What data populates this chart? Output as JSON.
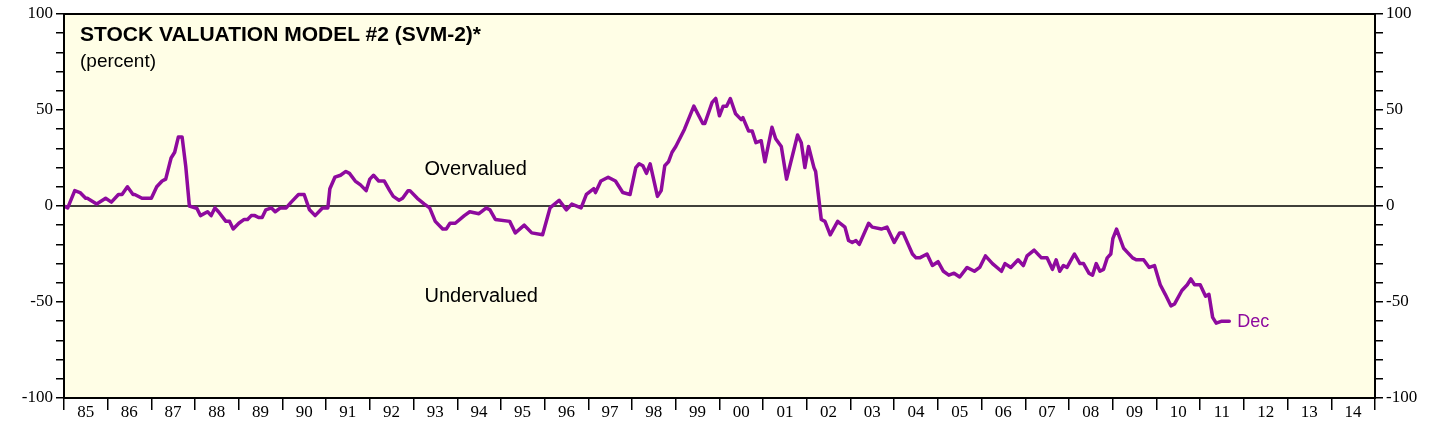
{
  "chart_data": {
    "type": "line",
    "title": "STOCK VALUATION MODEL #2 (SVM-2)*",
    "subtitle": "(percent)",
    "annotations": [
      "Overvalued",
      "Undervalued",
      {
        "text": "Dec",
        "x": "2011-09-01",
        "y": -60
      }
    ],
    "xlim": [
      "1985-01-01",
      "2015-01-01"
    ],
    "xticks": [
      {
        "value": "1985-01-01",
        "label": null
      },
      {
        "value": "1985-07-01",
        "label": "85"
      },
      {
        "value": "1986-01-01",
        "label": null
      },
      {
        "value": "1986-07-01",
        "label": "86"
      },
      {
        "value": "1987-01-01",
        "label": null
      },
      {
        "value": "1987-07-01",
        "label": "87"
      },
      {
        "value": "1988-01-01",
        "label": null
      },
      {
        "value": "1988-07-01",
        "label": "88"
      },
      {
        "value": "1989-01-01",
        "label": null
      },
      {
        "value": "1989-07-01",
        "label": "89"
      },
      {
        "value": "1990-01-01",
        "label": null
      },
      {
        "value": "1990-07-01",
        "label": "90"
      },
      {
        "value": "1991-01-01",
        "label": null
      },
      {
        "value": "1991-07-01",
        "label": "91"
      },
      {
        "value": "1992-01-01",
        "label": null
      },
      {
        "value": "1992-07-01",
        "label": "92"
      },
      {
        "value": "1993-01-01",
        "label": null
      },
      {
        "value": "1993-07-01",
        "label": "93"
      },
      {
        "value": "1994-01-01",
        "label": null
      },
      {
        "value": "1994-07-01",
        "label": "94"
      },
      {
        "value": "1995-01-01",
        "label": null
      },
      {
        "value": "1995-07-01",
        "label": "95"
      },
      {
        "value": "1996-01-01",
        "label": null
      },
      {
        "value": "1996-07-01",
        "label": "96"
      },
      {
        "value": "1997-01-01",
        "label": null
      },
      {
        "value": "1997-07-01",
        "label": "97"
      },
      {
        "value": "1998-01-01",
        "label": null
      },
      {
        "value": "1998-07-01",
        "label": "98"
      },
      {
        "value": "1999-01-01",
        "label": null
      },
      {
        "value": "1999-07-01",
        "label": "99"
      },
      {
        "value": "2000-01-01",
        "label": null
      },
      {
        "value": "2000-07-01",
        "label": "00"
      },
      {
        "value": "2001-01-01",
        "label": null
      },
      {
        "value": "2001-07-01",
        "label": "01"
      },
      {
        "value": "2002-01-01",
        "label": null
      },
      {
        "value": "2002-07-01",
        "label": "02"
      },
      {
        "value": "2003-01-01",
        "label": null
      },
      {
        "value": "2003-07-01",
        "label": "03"
      },
      {
        "value": "2004-01-01",
        "label": null
      },
      {
        "value": "2004-07-01",
        "label": "04"
      },
      {
        "value": "2005-01-01",
        "label": null
      },
      {
        "value": "2005-07-01",
        "label": "05"
      },
      {
        "value": "2006-01-01",
        "label": null
      },
      {
        "value": "2006-07-01",
        "label": "06"
      },
      {
        "value": "2007-01-01",
        "label": null
      },
      {
        "value": "2007-07-01",
        "label": "07"
      },
      {
        "value": "2008-01-01",
        "label": null
      },
      {
        "value": "2008-07-01",
        "label": "08"
      },
      {
        "value": "2009-01-01",
        "label": null
      },
      {
        "value": "2009-07-01",
        "label": "09"
      },
      {
        "value": "2010-01-01",
        "label": null
      },
      {
        "value": "2010-07-01",
        "label": "10"
      },
      {
        "value": "2011-01-01",
        "label": null
      },
      {
        "value": "2011-07-01",
        "label": "11"
      },
      {
        "value": "2012-01-01",
        "label": null
      },
      {
        "value": "2012-07-01",
        "label": "12"
      },
      {
        "value": "2013-01-01",
        "label": null
      },
      {
        "value": "2013-07-01",
        "label": "13"
      },
      {
        "value": "2014-01-01",
        "label": null
      },
      {
        "value": "2014-07-01",
        "label": "14"
      },
      {
        "value": "2015-01-01",
        "label": null
      }
    ],
    "ylim": [
      -100,
      100
    ],
    "yticks": [
      -100,
      {
        "value": -90,
        "label": null
      },
      {
        "value": -80,
        "label": null
      },
      {
        "value": -70,
        "label": null
      },
      {
        "value": -60,
        "label": null
      },
      -50,
      {
        "value": -40,
        "label": null
      },
      {
        "value": -30,
        "label": null
      },
      {
        "value": -20,
        "label": null
      },
      {
        "value": -10,
        "label": null
      },
      0,
      {
        "value": 10,
        "label": null
      },
      {
        "value": 20,
        "label": null
      },
      {
        "value": 30,
        "label": null
      },
      {
        "value": 40,
        "label": null
      },
      50,
      {
        "value": 60,
        "label": null
      },
      {
        "value": 70,
        "label": null
      },
      {
        "value": 80,
        "label": null
      },
      {
        "value": 90,
        "label": null
      },
      100
    ],
    "y2lim": [
      -100,
      100
    ],
    "y2ticks": [
      -100,
      {
        "value": -90,
        "label": null
      },
      {
        "value": -80,
        "label": null
      },
      {
        "value": -70,
        "label": null
      },
      {
        "value": -60,
        "label": null
      },
      -50,
      {
        "value": -40,
        "label": null
      },
      {
        "value": -30,
        "label": null
      },
      {
        "value": -20,
        "label": null
      },
      {
        "value": -10,
        "label": null
      },
      0,
      {
        "value": 10,
        "label": null
      },
      {
        "value": 20,
        "label": null
      },
      {
        "value": 30,
        "label": null
      },
      {
        "value": 40,
        "label": null
      },
      50,
      {
        "value": 60,
        "label": null
      },
      {
        "value": 70,
        "label": null
      },
      {
        "value": 80,
        "label": null
      },
      {
        "value": 90,
        "label": null
      },
      100
    ],
    "ref_lines": [
      {
        "axis": "y",
        "value": 0,
        "color": "#000000"
      }
    ],
    "grid": false,
    "legend": false,
    "marker": "none",
    "line_style": "solid",
    "series": [
      {
        "color": "#8e0a9e",
        "x": [
          "1985-01-01",
          "1985-02-01",
          "1985-04-01",
          "1985-05-15",
          "1985-07-01",
          "1985-07-15",
          "1985-10-01",
          "1985-12-15",
          "1986-02-01",
          "1986-04-01",
          "1986-05-01",
          "1986-06-15",
          "1986-08-01",
          "1986-08-15",
          "1986-10-15",
          "1987-01-01",
          "1987-02-15",
          "1987-04-01",
          "1987-05-01",
          "1987-06-15",
          "1987-07-15",
          "1987-08-15",
          "1987-09-15",
          "1987-10-15",
          "1987-11-15",
          "1988-01-01",
          "1988-01-15",
          "1988-02-15",
          "1988-04-15",
          "1988-05-15",
          "1988-06-15",
          "1988-07-15",
          "1988-09-15",
          "1988-10-15",
          "1988-11-15",
          "1989-01-01",
          "1989-02-15",
          "1989-03-15",
          "1989-04-15",
          "1989-05-15",
          "1989-06-15",
          "1989-07-15",
          "1989-08-15",
          "1989-10-01",
          "1989-11-01",
          "1989-12-15",
          "1990-02-01",
          "1990-03-15",
          "1990-05-15",
          "1990-07-01",
          "1990-08-15",
          "1990-10-01",
          "1990-12-01",
          "1991-01-15",
          "1991-02-01",
          "1991-03-15",
          "1991-05-01",
          "1991-06-15",
          "1991-07-15",
          "1991-09-01",
          "1991-10-15",
          "1991-12-01",
          "1992-01-01",
          "1992-02-01",
          "1992-03-15",
          "1992-05-01",
          "1992-06-15",
          "1992-07-15",
          "1992-09-01",
          "1992-10-01",
          "1992-11-15",
          "1992-12-01",
          "1993-02-01",
          "1993-04-01",
          "1993-05-15",
          "1993-07-01",
          "1993-09-01",
          "1993-10-01",
          "1993-11-01",
          "1993-12-15",
          "1994-03-01",
          "1994-04-15",
          "1994-07-01",
          "1994-09-01",
          "1994-10-01",
          "1994-11-15",
          "1995-03-15",
          "1995-05-01",
          "1995-07-15",
          "1995-09-15",
          "1995-12-15",
          "1996-02-15",
          "1996-05-01",
          "1996-07-01",
          "1996-08-15",
          "1996-11-01",
          "1996-12-15",
          "1997-02-15",
          "1997-03-01",
          "1997-04-15",
          "1997-06-15",
          "1997-08-15",
          "1997-10-15",
          "1997-12-15",
          "1998-02-01",
          "1998-03-01",
          "1998-04-01",
          "1998-05-01",
          "1998-06-01",
          "1998-08-01",
          "1998-09-01",
          "1998-10-01",
          "1998-11-01",
          "1998-12-01",
          "1999-01-01",
          "1999-03-15",
          "1999-06-01",
          "1999-08-15",
          "1999-09-01",
          "1999-11-01",
          "1999-12-01",
          "2000-01-01",
          "2000-02-01",
          "2000-03-01",
          "2000-04-01",
          "2000-05-15",
          "2000-07-01",
          "2000-07-15",
          "2000-09-01",
          "2000-10-01",
          "2000-11-01",
          "2000-12-15",
          "2001-01-15",
          "2001-03-15",
          "2001-04-15",
          "2001-06-01",
          "2001-07-15",
          "2001-10-15",
          "2001-11-15",
          "2001-12-15",
          "2002-01-15",
          "2002-03-01",
          "2002-03-15",
          "2002-05-01",
          "2002-06-01",
          "2002-07-15",
          "2002-09-15",
          "2002-11-15",
          "2002-12-15",
          "2003-01-15",
          "2003-02-15",
          "2003-03-15",
          "2003-06-01",
          "2003-07-01",
          "2003-09-15",
          "2003-11-01",
          "2004-01-01",
          "2004-02-15",
          "2004-03-15",
          "2004-06-01",
          "2004-07-01",
          "2004-08-01",
          "2004-10-01",
          "2004-11-15",
          "2005-01-01",
          "2005-02-15",
          "2005-04-01",
          "2005-05-15",
          "2005-07-01",
          "2005-09-01",
          "2005-11-01",
          "2005-12-15",
          "2006-02-01",
          "2006-04-01",
          "2006-06-15",
          "2006-07-15",
          "2006-09-01",
          "2006-11-01",
          "2006-12-15",
          "2007-01-15",
          "2007-03-15",
          "2007-05-15",
          "2007-07-01",
          "2007-08-15",
          "2007-09-15",
          "2007-10-15",
          "2007-11-15",
          "2007-12-15",
          "2008-02-15",
          "2008-04-01",
          "2008-05-01",
          "2008-06-15",
          "2008-07-15",
          "2008-08-15",
          "2008-09-15",
          "2008-10-15",
          "2008-11-15",
          "2008-12-15",
          "2009-01-01",
          "2009-02-01",
          "2009-04-01",
          "2009-05-01",
          "2009-06-15",
          "2009-07-15",
          "2009-09-15",
          "2009-11-01",
          "2009-12-15",
          "2010-02-01",
          "2010-03-15",
          "2010-05-01",
          "2010-06-01",
          "2010-08-01",
          "2010-09-15",
          "2010-10-15",
          "2010-11-15",
          "2011-01-01",
          "2011-02-15",
          "2011-03-15",
          "2011-04-15",
          "2011-05-15",
          "2011-07-01",
          "2011-09-01"
        ],
        "values": [
          0,
          -1,
          8,
          7,
          4,
          4,
          1,
          4,
          2,
          6,
          6,
          10,
          6,
          6,
          4,
          4,
          10,
          13,
          14,
          25,
          28,
          36,
          36,
          21,
          0,
          -1,
          -1,
          -5,
          -3,
          -5,
          -1,
          -3,
          -8,
          -8,
          -12,
          -9,
          -7,
          -7,
          -5,
          -5,
          -6,
          -6,
          -2,
          -1,
          -3,
          -1,
          -1,
          2,
          6,
          6,
          -2,
          -5,
          -1,
          -1,
          9,
          15,
          16,
          18,
          17,
          13,
          11,
          8,
          14,
          16,
          13,
          13,
          8,
          5,
          3,
          4,
          8,
          8,
          4,
          1,
          -1,
          -8,
          -12,
          -12,
          -9,
          -9,
          -5,
          -3,
          -4,
          -1,
          -2,
          -7,
          -8,
          -14,
          -10,
          -14,
          -15,
          -1,
          3,
          -2,
          1,
          -1,
          6,
          9,
          7,
          13,
          15,
          13,
          7,
          6,
          20,
          22,
          21,
          17,
          22,
          5,
          8,
          21,
          23,
          28,
          31,
          40,
          52,
          43,
          43,
          54,
          56,
          47,
          52,
          52,
          56,
          48,
          45,
          46,
          39,
          39,
          33,
          34,
          23,
          41,
          35,
          31,
          14,
          37,
          33,
          20,
          31,
          20,
          18,
          -7,
          -8,
          -15,
          -8,
          -11,
          -18,
          -19,
          -18,
          -20,
          -9,
          -11,
          -12,
          -11,
          -19,
          -14,
          -14,
          -25,
          -27,
          -27,
          -25,
          -31,
          -29,
          -34,
          -36,
          -35,
          -37,
          -32,
          -34,
          -32,
          -26,
          -30,
          -34,
          -30,
          -32,
          -28,
          -31,
          -26,
          -23,
          -27,
          -27,
          -33,
          -28,
          -34,
          -31,
          -32,
          -25,
          -30,
          -30,
          -35,
          -36,
          -30,
          -34,
          -33,
          -27,
          -25,
          -17,
          -12,
          -22,
          -24,
          -27,
          -28,
          -28,
          -32,
          -31,
          -41,
          -46,
          -52,
          -51,
          -44,
          -41,
          -38,
          -41,
          -41,
          -47,
          -46,
          -58,
          -61,
          -60,
          -60
        ]
      }
    ]
  }
}
